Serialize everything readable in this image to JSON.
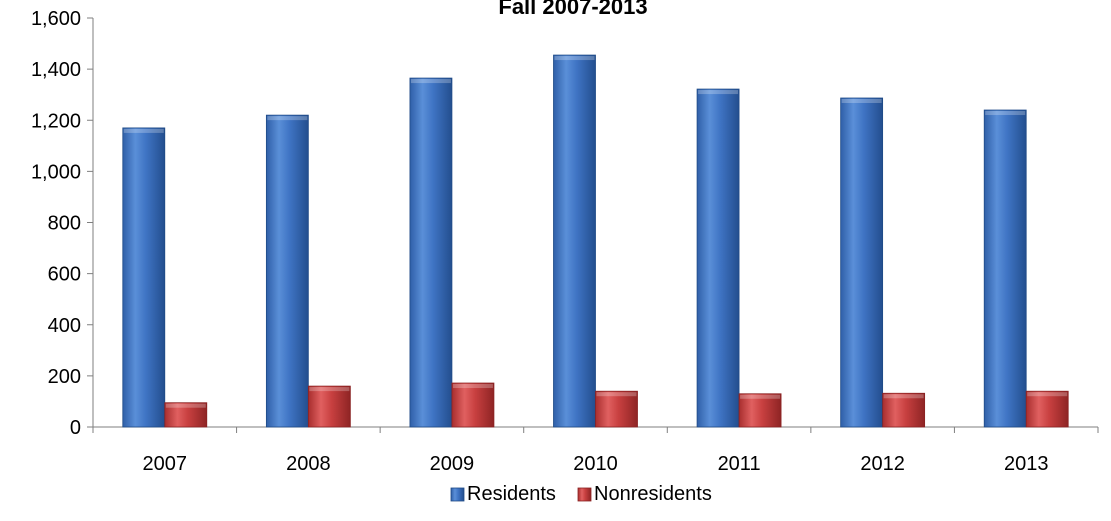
{
  "chart_data": {
    "type": "bar",
    "title": "Fall 2007-2013",
    "xlabel": "",
    "ylabel": "",
    "categories": [
      "2007",
      "2008",
      "2009",
      "2010",
      "2011",
      "2012",
      "2013"
    ],
    "series": [
      {
        "name": "Residents",
        "values": [
          1170,
          1220,
          1365,
          1455,
          1322,
          1287,
          1240
        ],
        "color": "#3F74C4"
      },
      {
        "name": "Nonresidents",
        "values": [
          95,
          160,
          172,
          140,
          130,
          132,
          140
        ],
        "color": "#C84040"
      }
    ],
    "ylim": [
      0,
      1600
    ],
    "yticks": [
      0,
      200,
      400,
      600,
      800,
      1000,
      1200,
      1400,
      1600
    ],
    "ytick_labels": [
      "0",
      "200",
      "400",
      "600",
      "800",
      "1,000",
      "1,200",
      "1,400",
      "1,600"
    ],
    "grid": false,
    "legend_position": "bottom"
  }
}
